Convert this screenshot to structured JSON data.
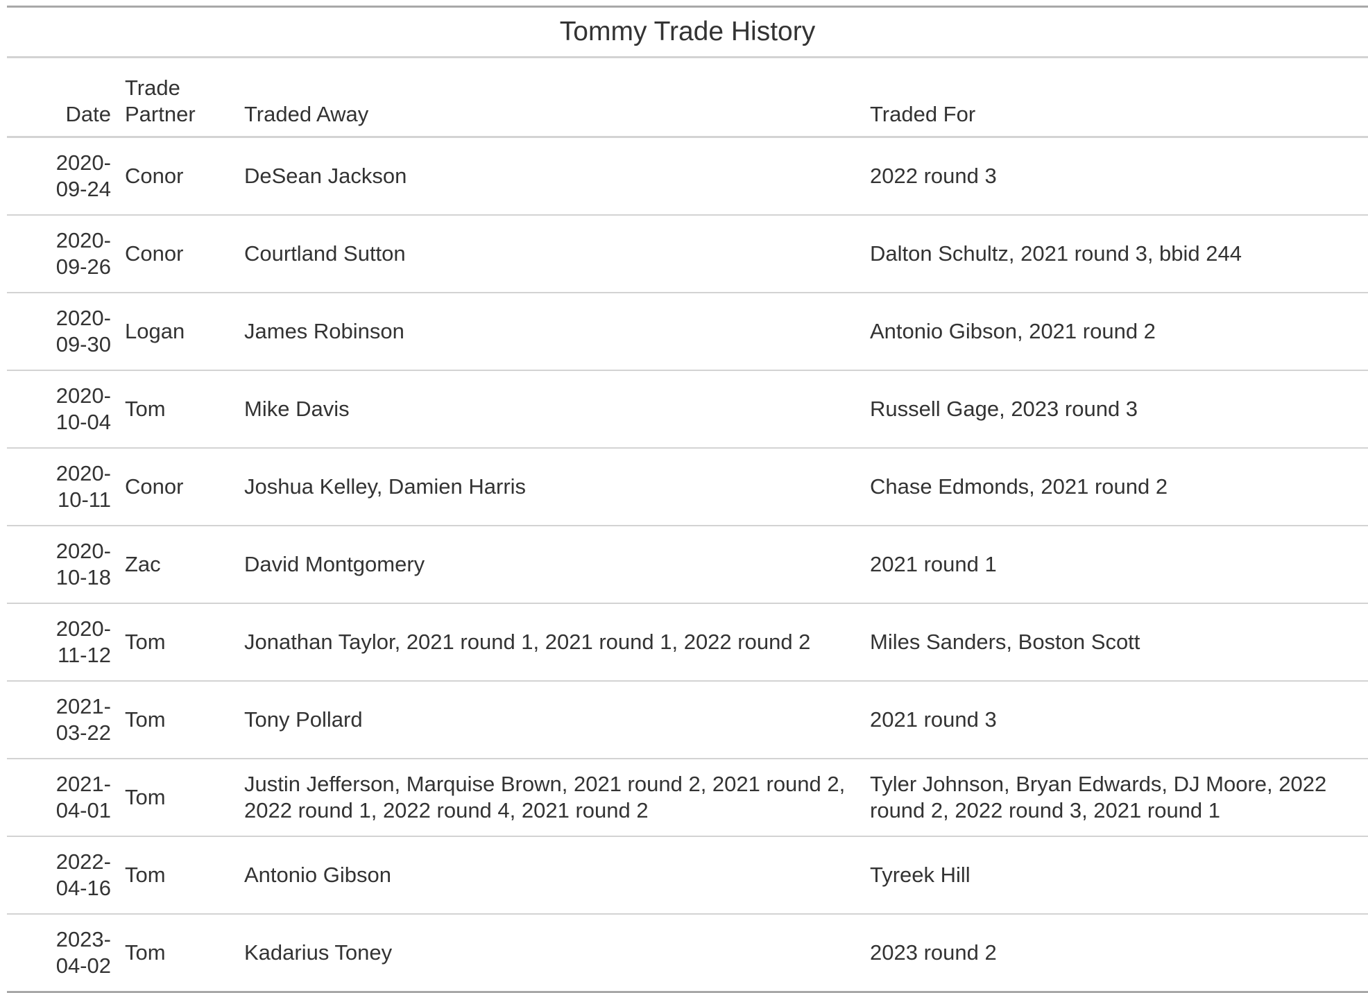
{
  "chart_data": {
    "type": "table",
    "title": "Tommy Trade History",
    "columns": [
      "Date",
      "Trade Partner",
      "Traded Away",
      "Traded For"
    ],
    "column_headers": {
      "date": "Date",
      "partner_line1": "Trade",
      "partner_line2": "Partner",
      "away": "Traded Away",
      "for": "Traded For"
    },
    "rows": [
      {
        "date_a": "2020-",
        "date_b": "09-24",
        "partner": "Conor",
        "away": "DeSean Jackson",
        "for": "2022 round 3"
      },
      {
        "date_a": "2020-",
        "date_b": "09-26",
        "partner": "Conor",
        "away": "Courtland Sutton",
        "for": "Dalton Schultz, 2021 round 3, bbid 244"
      },
      {
        "date_a": "2020-",
        "date_b": "09-30",
        "partner": "Logan",
        "away": "James Robinson",
        "for": "Antonio Gibson, 2021 round 2"
      },
      {
        "date_a": "2020-",
        "date_b": "10-04",
        "partner": "Tom",
        "away": "Mike Davis",
        "for": "Russell Gage, 2023 round 3"
      },
      {
        "date_a": "2020-",
        "date_b": "10-11",
        "partner": "Conor",
        "away": "Joshua Kelley, Damien Harris",
        "for": "Chase Edmonds, 2021 round 2"
      },
      {
        "date_a": "2020-",
        "date_b": "10-18",
        "partner": "Zac",
        "away": "David Montgomery",
        "for": "2021 round 1"
      },
      {
        "date_a": "2020-",
        "date_b": "11-12",
        "partner": "Tom",
        "away": "Jonathan Taylor, 2021 round 1, 2021 round 1, 2022 round 2",
        "for": "Miles Sanders, Boston Scott"
      },
      {
        "date_a": "2021-",
        "date_b": "03-22",
        "partner": "Tom",
        "away": "Tony Pollard",
        "for": "2021 round 3"
      },
      {
        "date_a": "2021-",
        "date_b": "04-01",
        "partner": "Tom",
        "away": "Justin Jefferson, Marquise Brown, 2021 round 2, 2021 round 2, 2022 round 1, 2022 round 4, 2021 round 2",
        "for": "Tyler Johnson, Bryan Edwards, DJ Moore, 2022 round 2, 2022 round 3, 2021 round 1"
      },
      {
        "date_a": "2022-",
        "date_b": "04-16",
        "partner": "Tom",
        "away": "Antonio Gibson",
        "for": "Tyreek Hill"
      },
      {
        "date_a": "2023-",
        "date_b": "04-02",
        "partner": "Tom",
        "away": "Kadarius Toney",
        "for": "2023 round 2"
      }
    ]
  },
  "colors": {
    "text": "#333333",
    "strong_rule": "#a8a8a8",
    "light_rule": "#d3d3d3"
  }
}
